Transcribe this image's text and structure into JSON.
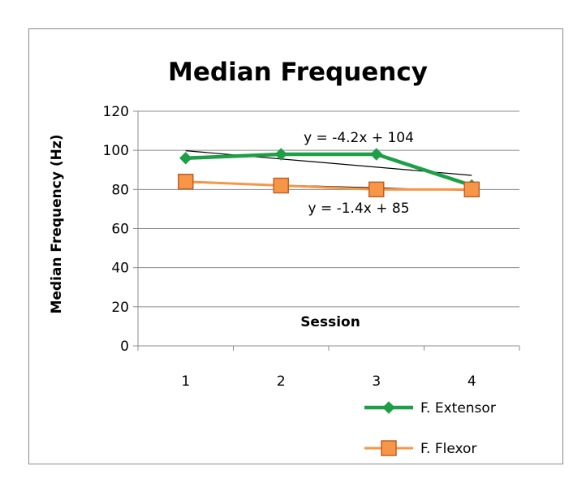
{
  "chart_data": {
    "type": "line",
    "title": "Median Frequency",
    "xlabel": "Session",
    "ylabel": "Median Frequency (Hz)",
    "categories": [
      "1",
      "2",
      "3",
      "4"
    ],
    "ylim": [
      0,
      120
    ],
    "yticks": [
      0,
      20,
      40,
      60,
      80,
      100,
      120
    ],
    "grid": true,
    "legend_position": "bottom-right",
    "series": [
      {
        "name": "F. Extensor",
        "values": [
          96,
          98,
          98,
          82
        ],
        "color": "#1e9e46",
        "marker": "diamond"
      },
      {
        "name": "F. Flexor",
        "values": [
          84,
          82,
          80,
          80
        ],
        "color": "#f79646",
        "marker": "square",
        "marker_stroke": "#c0612a"
      }
    ],
    "trendlines": [
      {
        "series": "F. Extensor",
        "equation": "y = -4.2x + 104",
        "slope": -4.2,
        "intercept": 104
      },
      {
        "series": "F. Flexor",
        "equation": "y = -1.4x + 85",
        "slope": -1.4,
        "intercept": 85
      }
    ]
  }
}
